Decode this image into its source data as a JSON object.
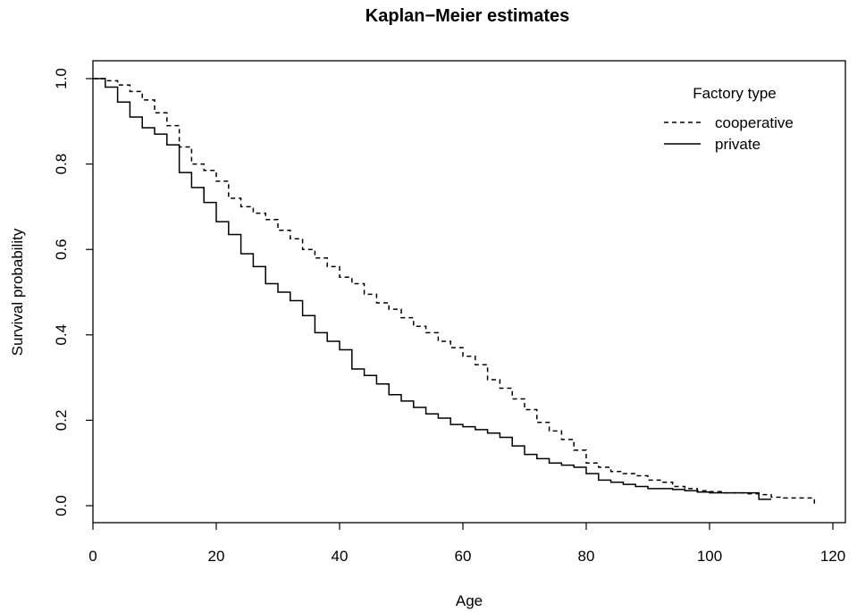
{
  "chart_data": {
    "type": "line",
    "title": "Kaplan−Meier estimates",
    "xlabel": "Age",
    "ylabel": "Survival probability",
    "xlim": [
      0,
      120
    ],
    "ylim": [
      0,
      1
    ],
    "x_ticks": [
      "0",
      "20",
      "40",
      "60",
      "80",
      "100",
      "120"
    ],
    "y_ticks": [
      "0.0",
      "0.2",
      "0.4",
      "0.6",
      "0.8",
      "1.0"
    ],
    "grid": false,
    "legend": {
      "title": "Factory type",
      "placement": "top-right"
    },
    "series": [
      {
        "name": "cooperative",
        "line_style": "dashed",
        "color": "#000000",
        "step": true,
        "x": [
          0,
          2,
          4,
          6,
          8,
          10,
          12,
          14,
          16,
          18,
          20,
          22,
          24,
          26,
          28,
          30,
          32,
          34,
          36,
          38,
          40,
          42,
          44,
          46,
          48,
          50,
          52,
          54,
          56,
          58,
          60,
          62,
          64,
          66,
          68,
          70,
          72,
          74,
          76,
          78,
          80,
          82,
          84,
          86,
          88,
          90,
          92,
          94,
          96,
          98,
          100,
          102,
          104,
          106,
          108,
          110,
          112,
          114,
          117
        ],
        "y": [
          1.0,
          0.995,
          0.985,
          0.97,
          0.95,
          0.92,
          0.89,
          0.84,
          0.8,
          0.785,
          0.76,
          0.72,
          0.7,
          0.685,
          0.67,
          0.645,
          0.625,
          0.6,
          0.58,
          0.56,
          0.535,
          0.52,
          0.495,
          0.475,
          0.46,
          0.44,
          0.42,
          0.405,
          0.385,
          0.37,
          0.35,
          0.33,
          0.295,
          0.275,
          0.25,
          0.225,
          0.195,
          0.175,
          0.155,
          0.13,
          0.1,
          0.09,
          0.08,
          0.075,
          0.07,
          0.06,
          0.055,
          0.045,
          0.04,
          0.035,
          0.033,
          0.03,
          0.03,
          0.028,
          0.026,
          0.02,
          0.018,
          0.018,
          0.0
        ]
      },
      {
        "name": "private",
        "line_style": "solid",
        "color": "#000000",
        "step": true,
        "x": [
          0,
          2,
          4,
          6,
          8,
          10,
          12,
          14,
          16,
          18,
          20,
          22,
          24,
          26,
          28,
          30,
          32,
          34,
          36,
          38,
          40,
          42,
          44,
          46,
          48,
          50,
          52,
          54,
          56,
          58,
          60,
          62,
          64,
          66,
          68,
          70,
          72,
          74,
          76,
          78,
          80,
          82,
          84,
          86,
          88,
          90,
          92,
          94,
          96,
          98,
          100,
          102,
          104,
          106,
          108,
          110
        ],
        "y": [
          1.0,
          0.98,
          0.945,
          0.91,
          0.885,
          0.87,
          0.845,
          0.78,
          0.745,
          0.71,
          0.665,
          0.635,
          0.59,
          0.56,
          0.52,
          0.5,
          0.48,
          0.445,
          0.405,
          0.385,
          0.365,
          0.32,
          0.305,
          0.285,
          0.26,
          0.245,
          0.23,
          0.215,
          0.205,
          0.19,
          0.185,
          0.178,
          0.17,
          0.16,
          0.14,
          0.12,
          0.11,
          0.1,
          0.095,
          0.09,
          0.075,
          0.06,
          0.055,
          0.05,
          0.045,
          0.04,
          0.04,
          0.038,
          0.035,
          0.032,
          0.03,
          0.03,
          0.03,
          0.03,
          0.015,
          0.015
        ]
      }
    ]
  }
}
